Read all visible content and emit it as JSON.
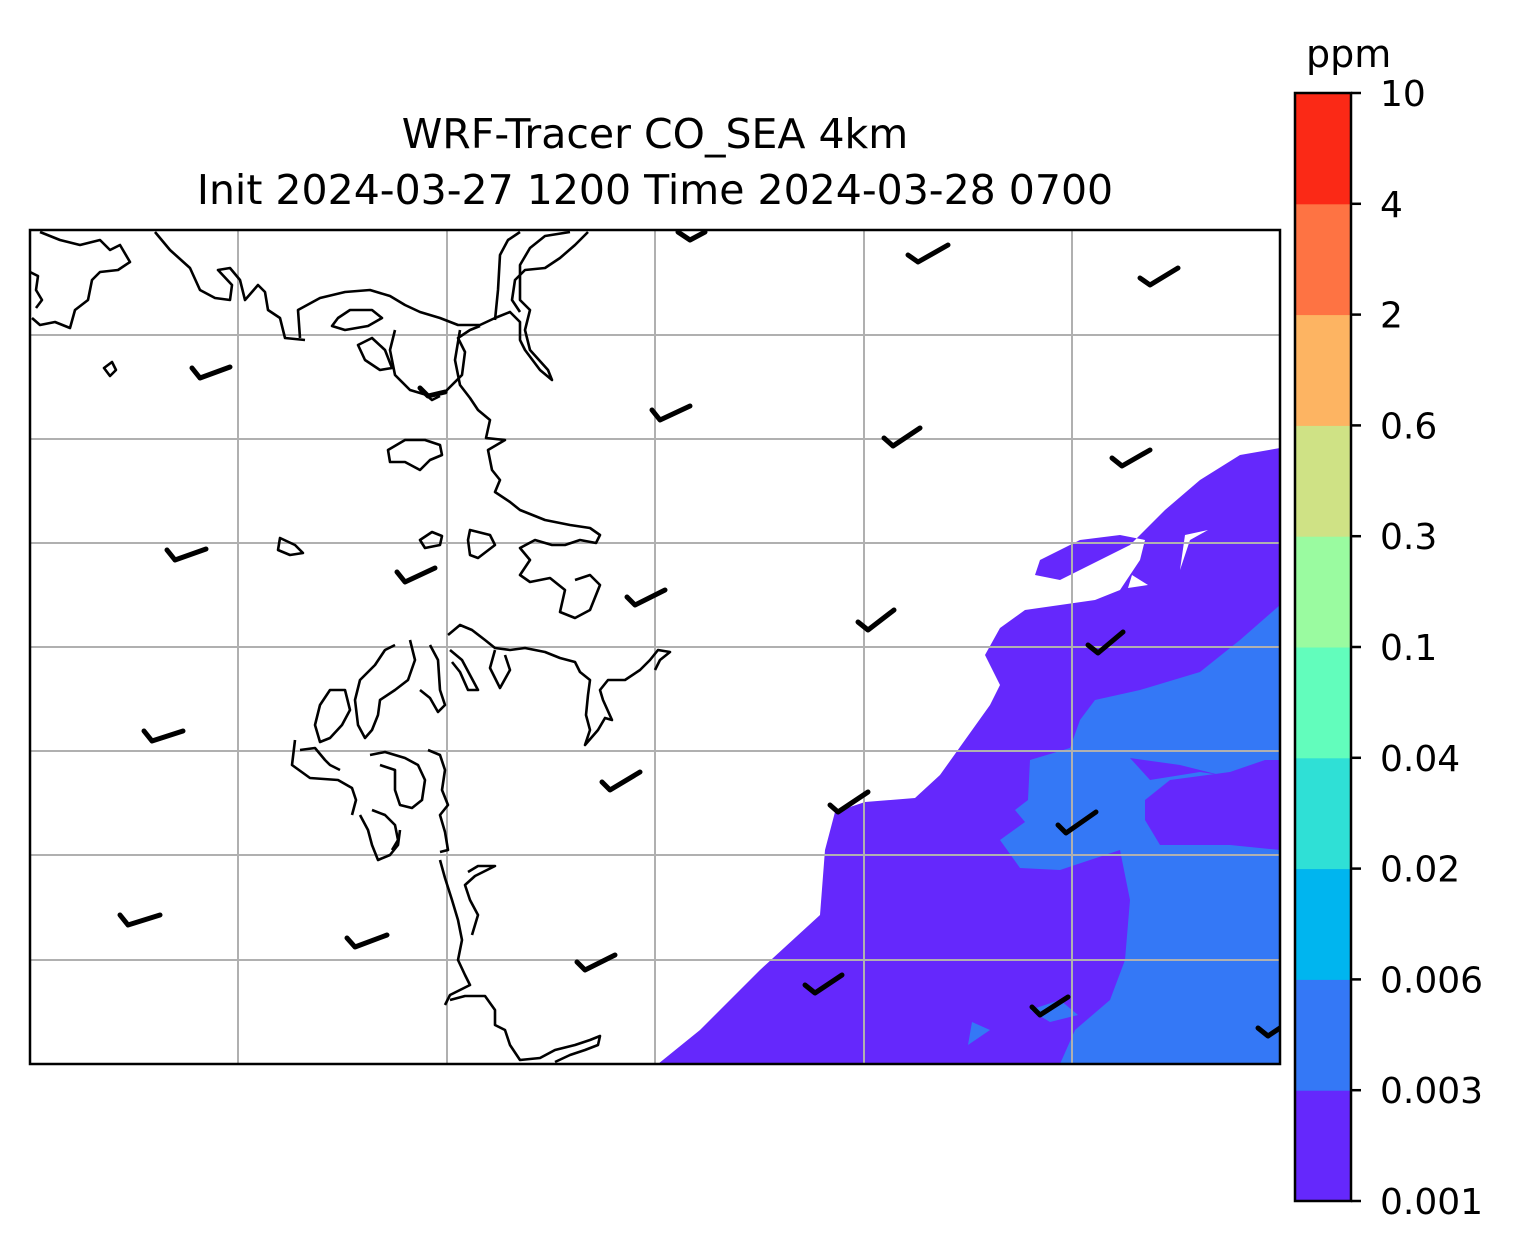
{
  "title_line1": "WRF-Tracer CO_SEA 4km",
  "title_line2": "Init 2024-03-27 1200 Time 2024-03-28 0700",
  "colorbar": {
    "units": "ppm",
    "levels": [
      "0.001",
      "0.003",
      "0.006",
      "0.02",
      "0.04",
      "0.1",
      "0.3",
      "0.6",
      "2",
      "4",
      "10"
    ],
    "colors": [
      "#6528fc",
      "#3478f6",
      "#00b5ef",
      "#2fe0d6",
      "#62fdbc",
      "#9afba0",
      "#cfe285",
      "#fdb462",
      "#fe7343",
      "#fb2916"
    ]
  },
  "map": {
    "coastline_color": "#000000",
    "grid_color": "#b0b0b0",
    "wind_barb_color": "#000000"
  }
}
